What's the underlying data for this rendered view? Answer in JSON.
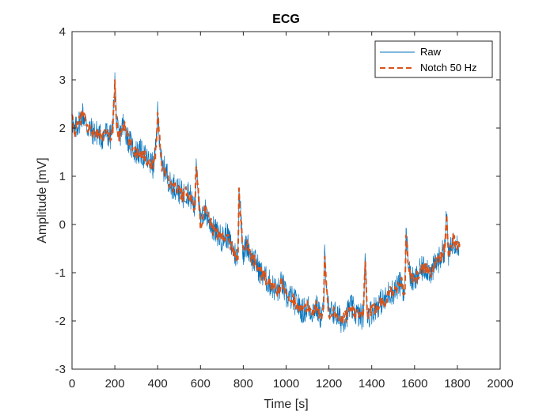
{
  "chart_data": {
    "type": "line",
    "title": "ECG",
    "xlabel": "Time [s]",
    "ylabel": "Amplitude [mV]",
    "xlim": [
      0,
      2000
    ],
    "ylim": [
      -3,
      4
    ],
    "xticks": [
      0,
      200,
      400,
      600,
      800,
      1000,
      1200,
      1400,
      1600,
      1800,
      2000
    ],
    "yticks": [
      -3,
      -2,
      -1,
      0,
      1,
      2,
      3,
      4
    ],
    "grid": false,
    "legend_position": "top-right",
    "colors": {
      "raw": "#0072BD",
      "notch": "#D95319"
    },
    "series": [
      {
        "name": "Raw",
        "style": "solid",
        "x": [
          0,
          10,
          20,
          30,
          40,
          50,
          60,
          70,
          80,
          100,
          120,
          140,
          160,
          180,
          190,
          200,
          210,
          220,
          240,
          260,
          280,
          300,
          320,
          340,
          360,
          380,
          390,
          400,
          420,
          440,
          460,
          480,
          500,
          520,
          540,
          560,
          575,
          580,
          600,
          620,
          640,
          660,
          680,
          700,
          720,
          740,
          760,
          775,
          780,
          800,
          820,
          840,
          860,
          880,
          900,
          920,
          940,
          960,
          980,
          1000,
          1020,
          1040,
          1060,
          1080,
          1100,
          1120,
          1140,
          1160,
          1175,
          1180,
          1200,
          1220,
          1240,
          1260,
          1280,
          1300,
          1320,
          1340,
          1360,
          1370,
          1380,
          1400,
          1420,
          1440,
          1460,
          1480,
          1500,
          1520,
          1540,
          1555,
          1560,
          1580,
          1600,
          1620,
          1640,
          1660,
          1680,
          1700,
          1720,
          1740,
          1750,
          1760,
          1780,
          1800,
          1810
        ],
        "values": [
          2.2,
          1.9,
          2.0,
          2.1,
          2.2,
          2.3,
          2.2,
          2.0,
          2.0,
          1.9,
          1.9,
          1.8,
          1.9,
          1.8,
          2.0,
          3.0,
          2.0,
          1.8,
          2.1,
          1.8,
          1.6,
          1.5,
          1.5,
          1.4,
          1.3,
          1.2,
          1.5,
          2.3,
          1.2,
          1.1,
          0.8,
          0.8,
          0.7,
          0.6,
          0.7,
          0.5,
          0.3,
          1.4,
          0.0,
          0.3,
          0.1,
          -0.1,
          -0.2,
          -0.3,
          -0.2,
          -0.4,
          -0.6,
          -0.7,
          0.8,
          -0.6,
          -0.4,
          -0.7,
          -0.8,
          -1.0,
          -1.1,
          -1.2,
          -1.3,
          -1.4,
          -1.2,
          -1.5,
          -1.5,
          -1.6,
          -1.7,
          -1.8,
          -1.7,
          -1.8,
          -1.7,
          -1.9,
          -1.8,
          -0.6,
          -1.9,
          -1.8,
          -1.9,
          -2.0,
          -1.9,
          -1.7,
          -1.8,
          -1.9,
          -1.9,
          -0.7,
          -1.9,
          -1.8,
          -1.7,
          -1.6,
          -1.6,
          -1.4,
          -1.4,
          -1.3,
          -1.2,
          -1.5,
          -0.2,
          -1.1,
          -1.2,
          -1.0,
          -0.9,
          -0.9,
          -1.0,
          -0.8,
          -0.7,
          -0.5,
          0.2,
          -0.7,
          -0.3,
          -0.4,
          -0.4
        ]
      },
      {
        "name": "Notch 50 Hz",
        "style": "dashed",
        "x": [
          0,
          10,
          20,
          30,
          40,
          50,
          60,
          70,
          80,
          100,
          120,
          140,
          160,
          180,
          190,
          200,
          210,
          220,
          240,
          260,
          280,
          300,
          320,
          340,
          360,
          380,
          390,
          400,
          420,
          440,
          460,
          480,
          500,
          520,
          540,
          560,
          575,
          580,
          600,
          620,
          640,
          660,
          680,
          700,
          720,
          740,
          760,
          775,
          780,
          800,
          820,
          840,
          860,
          880,
          900,
          920,
          940,
          960,
          980,
          1000,
          1020,
          1040,
          1060,
          1080,
          1100,
          1120,
          1140,
          1160,
          1175,
          1180,
          1200,
          1220,
          1240,
          1260,
          1280,
          1300,
          1320,
          1340,
          1360,
          1370,
          1380,
          1400,
          1420,
          1440,
          1460,
          1480,
          1500,
          1520,
          1540,
          1555,
          1560,
          1580,
          1600,
          1620,
          1640,
          1660,
          1680,
          1700,
          1720,
          1740,
          1750,
          1760,
          1780,
          1800,
          1810
        ],
        "values": [
          2.2,
          1.9,
          2.0,
          2.1,
          2.2,
          2.3,
          2.2,
          2.0,
          2.0,
          1.9,
          1.9,
          1.8,
          1.9,
          1.8,
          2.0,
          2.9,
          2.0,
          1.8,
          2.1,
          1.8,
          1.6,
          1.5,
          1.5,
          1.4,
          1.3,
          1.2,
          1.5,
          2.3,
          1.2,
          1.1,
          0.8,
          0.8,
          0.7,
          0.6,
          0.7,
          0.5,
          0.3,
          1.3,
          0.0,
          0.3,
          0.1,
          -0.1,
          -0.2,
          -0.3,
          -0.2,
          -0.4,
          -0.6,
          -0.7,
          0.7,
          -0.6,
          -0.4,
          -0.7,
          -0.8,
          -1.0,
          -1.1,
          -1.2,
          -1.3,
          -1.4,
          -1.2,
          -1.5,
          -1.5,
          -1.6,
          -1.7,
          -1.8,
          -1.7,
          -1.8,
          -1.7,
          -1.9,
          -1.8,
          -0.7,
          -1.9,
          -1.8,
          -1.9,
          -2.0,
          -1.9,
          -1.7,
          -1.8,
          -1.9,
          -1.9,
          -0.8,
          -1.9,
          -1.8,
          -1.7,
          -1.6,
          -1.6,
          -1.4,
          -1.4,
          -1.3,
          -1.2,
          -1.5,
          -0.3,
          -1.1,
          -1.2,
          -1.0,
          -0.9,
          -0.9,
          -1.0,
          -0.8,
          -0.7,
          -0.5,
          0.1,
          -0.7,
          -0.3,
          -0.4,
          -0.4
        ]
      }
    ]
  }
}
